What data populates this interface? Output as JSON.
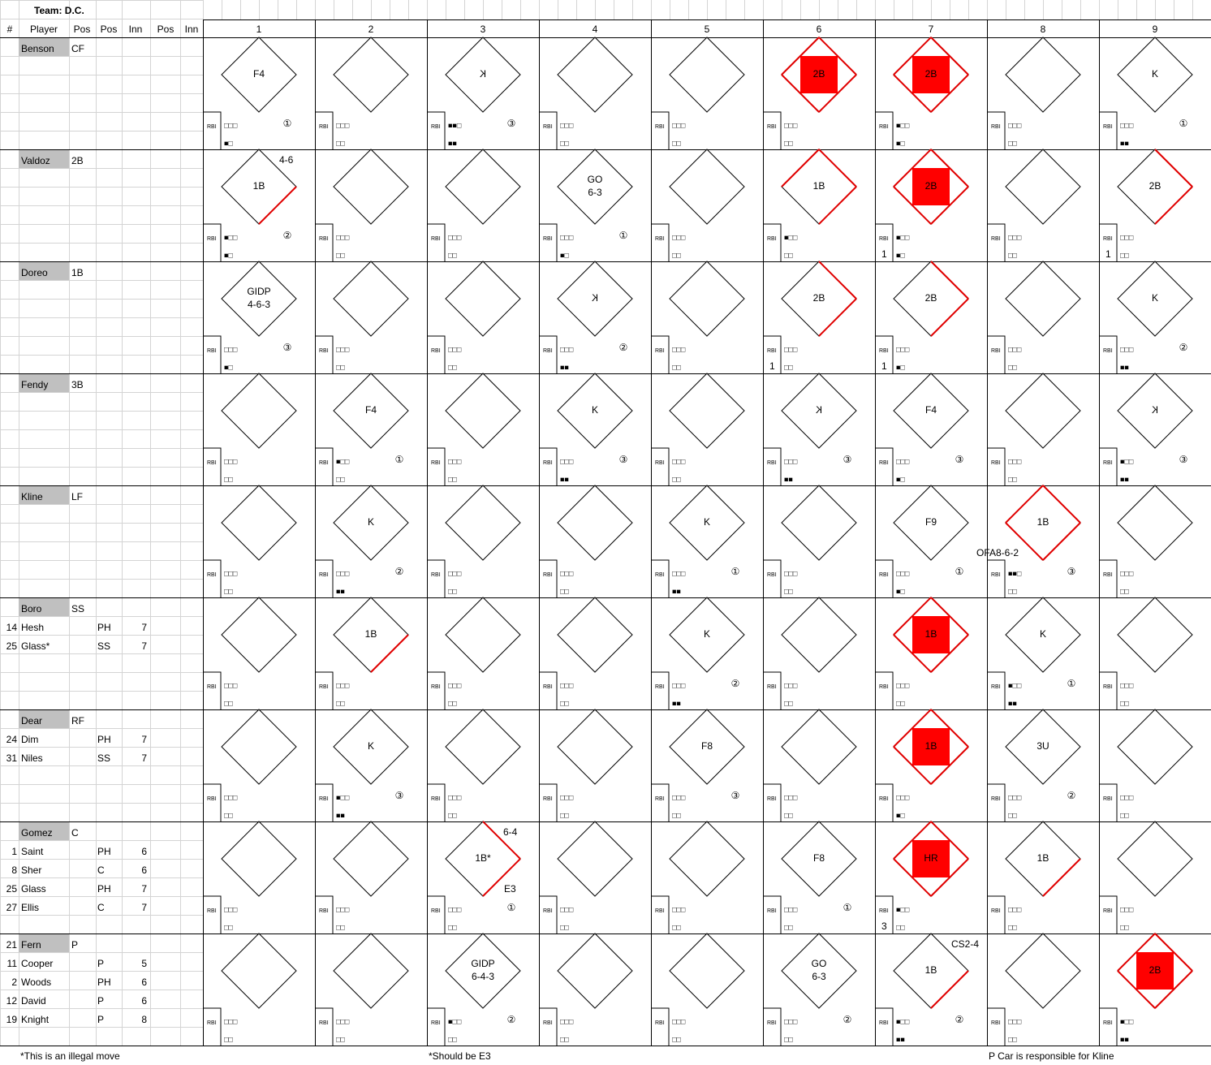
{
  "header": {
    "team_label": "Team: D.C.",
    "columns": [
      "#",
      "Player",
      "Pos",
      "Pos",
      "Inn",
      "Pos",
      "Inn"
    ],
    "innings": [
      1,
      2,
      3,
      4,
      5,
      6,
      7,
      8,
      9
    ],
    "rbi_label": "RBI"
  },
  "players": [
    {
      "name": "Benson",
      "pos": "CF",
      "subs": [],
      "cells": [
        {
          "result": [
            "F4"
          ],
          "b": "□□□",
          "s": "■□",
          "out": "①"
        },
        {
          "b": "□□□",
          "s": "□□"
        },
        {
          "result": [
            "K"
          ],
          "mirrored": true,
          "b": "■■□",
          "s": "■■",
          "out": "③"
        },
        {
          "b": "□□□",
          "s": "□□"
        },
        {
          "b": "□□□",
          "s": "□□"
        },
        {
          "result": [
            "2B"
          ],
          "bases": 4,
          "scored": true,
          "b": "□□□",
          "s": "□□"
        },
        {
          "result": [
            "2B"
          ],
          "bases": 4,
          "scored": true,
          "b": "■□□",
          "s": "■□"
        },
        {
          "b": "□□□",
          "s": "□□"
        },
        {
          "result": [
            "K"
          ],
          "b": "□□□",
          "s": "■■",
          "out": "①"
        }
      ]
    },
    {
      "name": "Valdoz",
      "pos": "2B",
      "subs": [],
      "cells": [
        {
          "result": [
            "1B"
          ],
          "bases": 1,
          "notes": [
            {
              "text": "4-6",
              "at": "top"
            }
          ],
          "b": "■□□",
          "s": "■□",
          "out": "②"
        },
        {
          "b": "□□□",
          "s": "□□"
        },
        {
          "b": "□□□",
          "s": "□□"
        },
        {
          "result": [
            "GO",
            "6-3"
          ],
          "b": "□□□",
          "s": "■□",
          "out": "①"
        },
        {
          "b": "□□□",
          "s": "□□"
        },
        {
          "result": [
            "1B"
          ],
          "bases": 3,
          "b": "■□□",
          "s": "□□"
        },
        {
          "result": [
            "2B"
          ],
          "bases": 4,
          "scored": true,
          "rbi": 1,
          "b": "■□□",
          "s": "■□"
        },
        {
          "b": "□□□",
          "s": "□□"
        },
        {
          "result": [
            "2B"
          ],
          "bases": 2,
          "rbi": 1,
          "b": "□□□",
          "s": "□□"
        }
      ]
    },
    {
      "name": "Doreo",
      "pos": "1B",
      "subs": [],
      "cells": [
        {
          "result": [
            "GIDP",
            "4-6-3"
          ],
          "b": "□□□",
          "s": "■□",
          "out": "③"
        },
        {
          "b": "□□□",
          "s": "□□"
        },
        {
          "b": "□□□",
          "s": "□□"
        },
        {
          "result": [
            "K"
          ],
          "mirrored": true,
          "b": "□□□",
          "s": "■■",
          "out": "②"
        },
        {
          "b": "□□□",
          "s": "□□"
        },
        {
          "result": [
            "2B"
          ],
          "bases": 2,
          "rbi": 1,
          "b": "□□□",
          "s": "□□"
        },
        {
          "result": [
            "2B"
          ],
          "bases": 2,
          "rbi": 1,
          "b": "□□□",
          "s": "■□"
        },
        {
          "b": "□□□",
          "s": "□□"
        },
        {
          "result": [
            "K"
          ],
          "b": "□□□",
          "s": "■■",
          "out": "②"
        }
      ]
    },
    {
      "name": "Fendy",
      "pos": "3B",
      "subs": [],
      "cells": [
        {
          "b": "□□□",
          "s": "□□"
        },
        {
          "result": [
            "F4"
          ],
          "b": "■□□",
          "s": "□□",
          "out": "①"
        },
        {
          "b": "□□□",
          "s": "□□"
        },
        {
          "result": [
            "K"
          ],
          "b": "□□□",
          "s": "■■",
          "out": "③"
        },
        {
          "b": "□□□",
          "s": "□□"
        },
        {
          "result": [
            "K"
          ],
          "mirrored": true,
          "b": "□□□",
          "s": "■■",
          "out": "③"
        },
        {
          "result": [
            "F4"
          ],
          "b": "□□□",
          "s": "■□",
          "out": "③"
        },
        {
          "b": "□□□",
          "s": "□□"
        },
        {
          "result": [
            "K"
          ],
          "mirrored": true,
          "b": "■□□",
          "s": "■■",
          "out": "③"
        }
      ]
    },
    {
      "name": "Kline",
      "pos": "LF",
      "subs": [],
      "cells": [
        {
          "b": "□□□",
          "s": "□□"
        },
        {
          "result": [
            "K"
          ],
          "b": "□□□",
          "s": "■■",
          "out": "②"
        },
        {
          "b": "□□□",
          "s": "□□"
        },
        {
          "b": "□□□",
          "s": "□□"
        },
        {
          "result": [
            "K"
          ],
          "b": "□□□",
          "s": "■■",
          "out": "①"
        },
        {
          "b": "□□□",
          "s": "□□"
        },
        {
          "result": [
            "F9"
          ],
          "b": "□□□",
          "s": "■□",
          "out": "①"
        },
        {
          "result": [
            "1B"
          ],
          "bases": 4,
          "notes": [
            {
              "text": "OFA8-6-2",
              "at": "left"
            }
          ],
          "b": "■■□",
          "s": "□□",
          "out": "③"
        },
        {
          "b": "□□□",
          "s": "□□"
        }
      ]
    },
    {
      "name": "Boro",
      "pos": "SS",
      "subs": [
        {
          "num": 14,
          "name": "Hesh",
          "pos": "PH",
          "inn": 7
        },
        {
          "num": 25,
          "name": "Glass*",
          "pos": "SS",
          "inn": 7
        }
      ],
      "cells": [
        {
          "b": "□□□",
          "s": "□□"
        },
        {
          "result": [
            "1B"
          ],
          "bases": 1,
          "b": "□□□",
          "s": "□□"
        },
        {
          "b": "□□□",
          "s": "□□"
        },
        {
          "b": "□□□",
          "s": "□□"
        },
        {
          "result": [
            "K"
          ],
          "b": "□□□",
          "s": "■■",
          "out": "②"
        },
        {
          "b": "□□□",
          "s": "□□"
        },
        {
          "result": [
            "1B"
          ],
          "bases": 4,
          "scored": true,
          "b": "□□□",
          "s": "□□"
        },
        {
          "result": [
            "K"
          ],
          "b": "■□□",
          "s": "■■",
          "out": "①"
        },
        {
          "b": "□□□",
          "s": "□□"
        }
      ]
    },
    {
      "name": "Dear",
      "pos": "RF",
      "subs": [
        {
          "num": 24,
          "name": "Dim",
          "pos": "PH",
          "inn": 7
        },
        {
          "num": 31,
          "name": "Niles",
          "pos": "SS",
          "inn": 7
        }
      ],
      "cells": [
        {
          "b": "□□□",
          "s": "□□"
        },
        {
          "result": [
            "K"
          ],
          "b": "■□□",
          "s": "■■",
          "out": "③"
        },
        {
          "b": "□□□",
          "s": "□□"
        },
        {
          "b": "□□□",
          "s": "□□"
        },
        {
          "result": [
            "F8"
          ],
          "b": "□□□",
          "s": "□□",
          "out": "③"
        },
        {
          "b": "□□□",
          "s": "□□"
        },
        {
          "result": [
            "1B"
          ],
          "bases": 4,
          "scored": true,
          "b": "□□□",
          "s": "■□"
        },
        {
          "result": [
            "3U"
          ],
          "b": "□□□",
          "s": "□□",
          "out": "②"
        },
        {
          "b": "□□□",
          "s": "□□"
        }
      ]
    },
    {
      "name": "Gomez",
      "pos": "C",
      "subs": [
        {
          "num": 1,
          "name": "Saint",
          "pos": "PH",
          "inn": 6
        },
        {
          "num": 8,
          "name": "Sher",
          "pos": "C",
          "inn": 6
        },
        {
          "num": 25,
          "name": "Glass",
          "pos": "PH",
          "inn": 7
        },
        {
          "num": 27,
          "name": "Ellis",
          "pos": "C",
          "inn": 7
        }
      ],
      "cells": [
        {
          "b": "□□□",
          "s": "□□"
        },
        {
          "b": "□□□",
          "s": "□□"
        },
        {
          "result": [
            "1B*"
          ],
          "bases": 2,
          "notes": [
            {
              "text": "6-4",
              "at": "top"
            },
            {
              "text": "E3",
              "at": "bottom"
            }
          ],
          "b": "□□□",
          "s": "□□",
          "out": "①"
        },
        {
          "b": "□□□",
          "s": "□□"
        },
        {
          "b": "□□□",
          "s": "□□"
        },
        {
          "result": [
            "F8"
          ],
          "b": "□□□",
          "s": "□□",
          "out": "①"
        },
        {
          "result": [
            "HR"
          ],
          "bases": 4,
          "scored": true,
          "rbi": 3,
          "b": "■□□",
          "s": "□□"
        },
        {
          "result": [
            "1B"
          ],
          "bases": 1,
          "b": "□□□",
          "s": "□□"
        },
        {
          "b": "□□□",
          "s": "□□"
        }
      ]
    },
    {
      "num": 21,
      "name": "Fern",
      "pos": "P",
      "subs": [
        {
          "num": 11,
          "name": "Cooper",
          "pos": "P",
          "inn": 5
        },
        {
          "num": 2,
          "name": "Woods",
          "pos": "PH",
          "inn": 6
        },
        {
          "num": 12,
          "name": "David",
          "pos": "P",
          "inn": 6
        },
        {
          "num": 19,
          "name": "Knight",
          "pos": "P",
          "inn": 8
        }
      ],
      "cells": [
        {
          "b": "□□□",
          "s": "□□"
        },
        {
          "b": "□□□",
          "s": "□□"
        },
        {
          "result": [
            "GIDP",
            "6-4-3"
          ],
          "b": "■□□",
          "s": "□□",
          "out": "②"
        },
        {
          "b": "□□□",
          "s": "□□"
        },
        {
          "b": "□□□",
          "s": "□□"
        },
        {
          "result": [
            "GO",
            "6-3"
          ],
          "b": "□□□",
          "s": "□□",
          "out": "②"
        },
        {
          "result": [
            "1B"
          ],
          "bases": 1,
          "notes": [
            {
              "text": "CS2-4",
              "at": "top"
            }
          ],
          "b": "■□□",
          "s": "■■",
          "out": "②"
        },
        {
          "b": "□□□",
          "s": "□□"
        },
        {
          "result": [
            "2B"
          ],
          "bases": 4,
          "scored": true,
          "b": "■□□",
          "s": "■■"
        }
      ]
    }
  ],
  "footer": {
    "notes": [
      "*This is an illegal move",
      "*Should be E3",
      "P Car is responsible for Kline"
    ]
  }
}
